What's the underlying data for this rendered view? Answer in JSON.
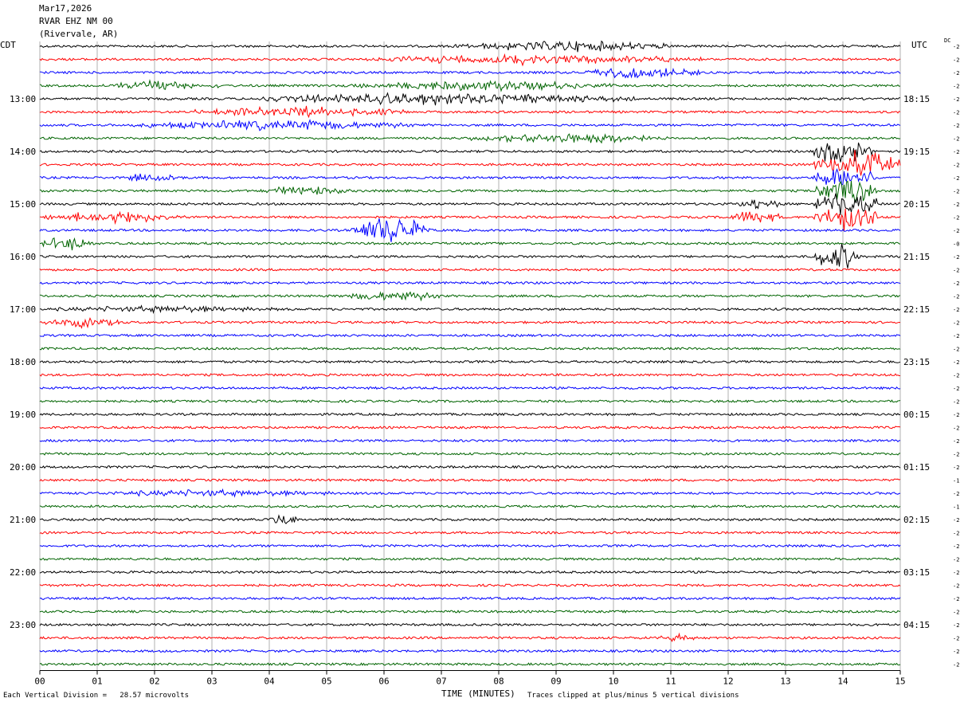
{
  "header": {
    "date": "Mar17,2026",
    "station": "RVAR EHZ NM 00",
    "location": "(Rivervale, AR)"
  },
  "left_tz": "CDT",
  "right_tz": "UTC",
  "dc_label": "DC",
  "footer": {
    "scale_note": "Each Vertical Division =   28.57 microvolts",
    "xlabel": "TIME (MINUTES)",
    "clip_note": "Traces clipped at plus/minus 5 vertical divisions"
  },
  "chart_data": {
    "type": "line",
    "title": "RVAR EHZ NM 00",
    "xlabel": "TIME (MINUTES)",
    "x_ticks": [
      "00",
      "01",
      "02",
      "03",
      "04",
      "05",
      "06",
      "07",
      "08",
      "09",
      "10",
      "11",
      "12",
      "13",
      "14",
      "15"
    ],
    "xlim": [
      0,
      15
    ],
    "grid": true,
    "trace_count": 48,
    "trace_colors": [
      "#000000",
      "#ff0000",
      "#0000ff",
      "#006400"
    ],
    "left_hour_labels": [
      "13:00",
      "14:00",
      "15:00",
      "16:00",
      "17:00",
      "18:00",
      "19:00",
      "20:00",
      "21:00",
      "22:00",
      "23:00"
    ],
    "left_label_trace_index": [
      4,
      8,
      12,
      16,
      20,
      24,
      28,
      32,
      36,
      40,
      44
    ],
    "right_hour_labels": [
      "18:15",
      "19:15",
      "20:15",
      "21:15",
      "22:15",
      "23:15",
      "00:15",
      "01:15",
      "02:15",
      "03:15",
      "04:15"
    ],
    "right_label_trace_index": [
      4,
      8,
      12,
      16,
      20,
      24,
      28,
      32,
      36,
      40,
      44
    ],
    "dc_offsets": [
      "-2",
      "-2",
      "-2",
      "-2",
      "-2",
      "-2",
      "-2",
      "-2",
      "-2",
      "-2",
      "-2",
      "-2",
      "-2",
      "-2",
      "-2",
      "-0",
      "-2",
      "-2",
      "-2",
      "-2",
      "-2",
      "-2",
      "-2",
      "-2",
      "-2",
      "-2",
      "-2",
      "-2",
      "-2",
      "-2",
      "-2",
      "-2",
      "-2",
      "-1",
      "-2",
      "-1",
      "-2",
      "-2",
      "-2",
      "-2",
      "-2",
      "-2",
      "-2",
      "-2",
      "-2",
      "-2",
      "-2",
      "-2"
    ],
    "events": [
      {
        "trace": 0,
        "start_min": 7.2,
        "end_min": 11.2,
        "amp": 6
      },
      {
        "trace": 1,
        "start_min": 5.7,
        "end_min": 11.6,
        "amp": 6
      },
      {
        "trace": 2,
        "start_min": 9.5,
        "end_min": 11.5,
        "amp": 7
      },
      {
        "trace": 3,
        "start_min": 1.0,
        "end_min": 3.2,
        "amp": 6
      },
      {
        "trace": 3,
        "start_min": 5.3,
        "end_min": 10.0,
        "amp": 6
      },
      {
        "trace": 4,
        "start_min": 3.8,
        "end_min": 10.4,
        "amp": 7
      },
      {
        "trace": 5,
        "start_min": 2.6,
        "end_min": 6.4,
        "amp": 6
      },
      {
        "trace": 6,
        "start_min": 1.6,
        "end_min": 6.6,
        "amp": 6
      },
      {
        "trace": 7,
        "start_min": 7.5,
        "end_min": 11.0,
        "amp": 6
      },
      {
        "trace": 8,
        "start_min": 13.5,
        "end_min": 14.5,
        "amp": 16
      },
      {
        "trace": 9,
        "start_min": 13.5,
        "end_min": 15.0,
        "amp": 16
      },
      {
        "trace": 10,
        "start_min": 1.5,
        "end_min": 2.5,
        "amp": 6
      },
      {
        "trace": 10,
        "start_min": 13.5,
        "end_min": 14.6,
        "amp": 16
      },
      {
        "trace": 11,
        "start_min": 3.8,
        "end_min": 5.4,
        "amp": 6
      },
      {
        "trace": 11,
        "start_min": 13.5,
        "end_min": 14.6,
        "amp": 16
      },
      {
        "trace": 12,
        "start_min": 12.2,
        "end_min": 12.9,
        "amp": 8
      },
      {
        "trace": 12,
        "start_min": 13.5,
        "end_min": 14.6,
        "amp": 16
      },
      {
        "trace": 13,
        "start_min": 0.0,
        "end_min": 2.6,
        "amp": 7
      },
      {
        "trace": 13,
        "start_min": 12.0,
        "end_min": 12.9,
        "amp": 9
      },
      {
        "trace": 13,
        "start_min": 13.5,
        "end_min": 14.6,
        "amp": 16
      },
      {
        "trace": 14,
        "start_min": 5.4,
        "end_min": 6.8,
        "amp": 16
      },
      {
        "trace": 15,
        "start_min": 0.0,
        "end_min": 1.0,
        "amp": 8
      },
      {
        "trace": 16,
        "start_min": 13.5,
        "end_min": 14.3,
        "amp": 16
      },
      {
        "trace": 19,
        "start_min": 5.3,
        "end_min": 7.1,
        "amp": 6
      },
      {
        "trace": 20,
        "start_min": 0.1,
        "end_min": 4.2,
        "amp": 4
      },
      {
        "trace": 21,
        "start_min": 0.1,
        "end_min": 1.4,
        "amp": 6
      },
      {
        "trace": 34,
        "start_min": 0.6,
        "end_min": 5.4,
        "amp": 4
      },
      {
        "trace": 36,
        "start_min": 4.0,
        "end_min": 4.5,
        "amp": 9
      },
      {
        "trace": 45,
        "start_min": 10.8,
        "end_min": 11.5,
        "amp": 5
      }
    ]
  }
}
